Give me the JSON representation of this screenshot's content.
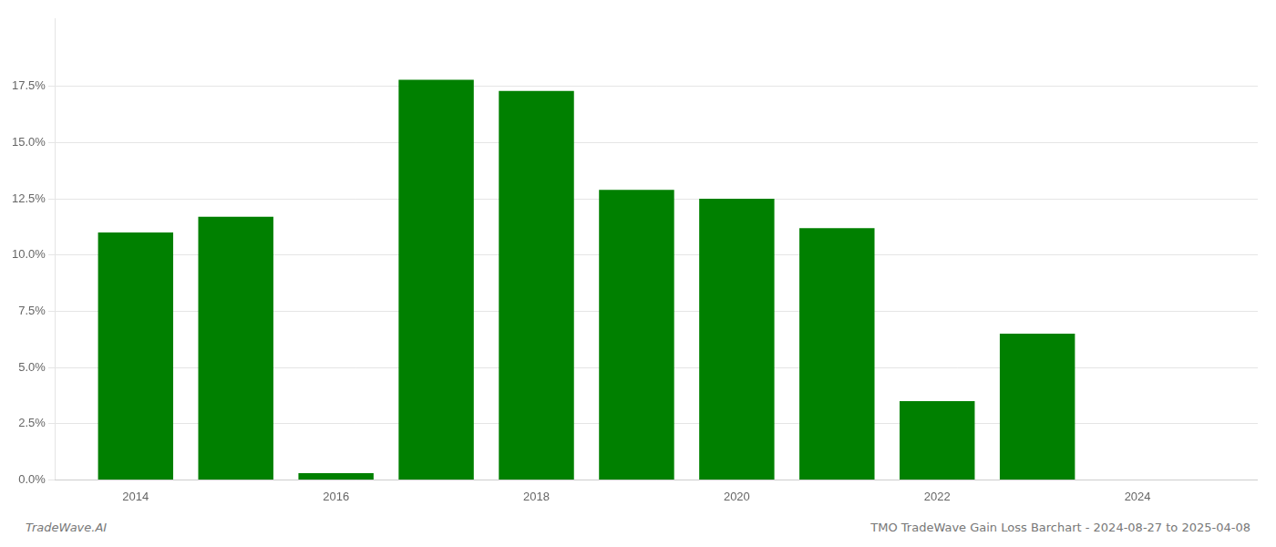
{
  "chart_data": {
    "type": "bar",
    "x": [
      2014,
      2015,
      2016,
      2017,
      2018,
      2019,
      2020,
      2021,
      2022,
      2023
    ],
    "values": [
      0.11,
      0.117,
      0.003,
      0.178,
      0.173,
      0.129,
      0.125,
      0.112,
      0.035,
      0.065
    ],
    "color": "#008000",
    "xlim": [
      2013.2,
      2025.2
    ],
    "xticks": [
      2014,
      2016,
      2018,
      2020,
      2022,
      2024
    ],
    "ylim": [
      0.0,
      0.205
    ],
    "yticks": [
      {
        "value": 0.0,
        "label": "0.0%"
      },
      {
        "value": 0.025,
        "label": "2.5%"
      },
      {
        "value": 0.05,
        "label": "5.0%"
      },
      {
        "value": 0.075,
        "label": "7.5%"
      },
      {
        "value": 0.1,
        "label": "10.0%"
      },
      {
        "value": 0.125,
        "label": "12.5%"
      },
      {
        "value": 0.15,
        "label": "15.0%"
      },
      {
        "value": 0.175,
        "label": "17.5%"
      }
    ],
    "grid": "y",
    "annotations": [
      "TradeWave.AI",
      "TMO TradeWave Gain Loss Barchart - 2024-08-27 to 2025-04-08"
    ]
  }
}
